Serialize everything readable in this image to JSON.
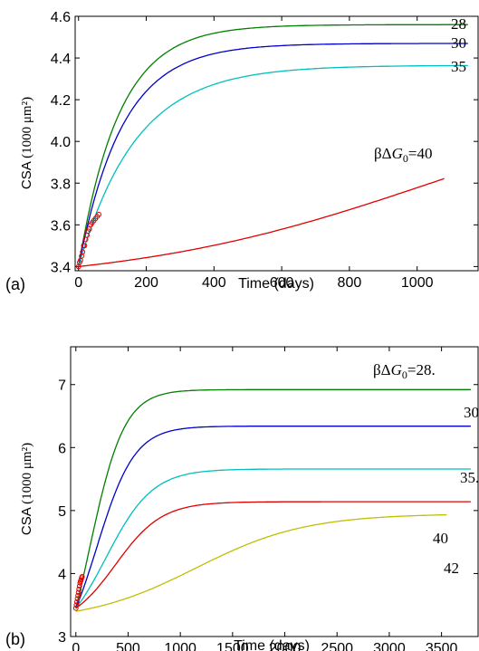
{
  "chart_data": [
    {
      "type": "line",
      "panel_label": "(a)",
      "xlabel": "Time (days)",
      "ylabel_prefix": "CSA",
      "ylabel_unit": "(1000 μm²)",
      "xlim": [
        -10,
        1180
      ],
      "ylim": [
        3.38,
        4.6
      ],
      "xticks": [
        0,
        200,
        400,
        600,
        800,
        1000
      ],
      "yticks": [
        3.4,
        3.6,
        3.8,
        4.0,
        4.2,
        4.4,
        4.6
      ],
      "ytick_labels": [
        "3.4",
        "3.6",
        "3.8",
        "4.0",
        "4.2",
        "4.4",
        "4.6"
      ],
      "series": [
        {
          "name": "28",
          "color": "#007f00",
          "y0": 3.4,
          "yinf": 4.56,
          "tau": 120,
          "xmax": 1150
        },
        {
          "name": "30",
          "color": "#0000cc",
          "y0": 3.4,
          "yinf": 4.47,
          "tau": 130,
          "xmax": 1150
        },
        {
          "name": "35",
          "color": "#00bfbf",
          "y0": 3.4,
          "yinf": 4.365,
          "tau": 170,
          "xmax": 1150
        },
        {
          "name": "βΔG₀=40",
          "color": "#e00000",
          "y0": 3.4,
          "yinf": 4.3,
          "k": 0.0022,
          "x50": 1050,
          "xmax": 1080
        }
      ],
      "curve_labels": [
        {
          "series": "28",
          "text": "28"
        },
        {
          "series": "30",
          "text": "30"
        },
        {
          "series": "35",
          "text": "35"
        },
        {
          "series": "βΔG₀=40",
          "text_pre": "βΔ",
          "text_g": "G",
          "text_sub": "0",
          "text_post": "=40"
        }
      ],
      "experimental_points": {
        "color": "#e00000",
        "x": [
          0,
          3,
          6,
          9,
          12,
          15,
          18,
          21,
          25,
          28,
          32,
          36,
          40,
          45,
          50,
          55,
          60
        ],
        "y": [
          3.4,
          3.42,
          3.43,
          3.45,
          3.47,
          3.5,
          3.5,
          3.53,
          3.55,
          3.57,
          3.58,
          3.6,
          3.61,
          3.62,
          3.63,
          3.64,
          3.65
        ]
      }
    },
    {
      "type": "line",
      "panel_label": "(b)",
      "xlabel": "Time (days)",
      "ylabel_prefix": "CSA",
      "ylabel_unit": "(1000 μm²)",
      "xlim": [
        -50,
        3850
      ],
      "ylim": [
        3.0,
        7.6
      ],
      "xticks": [
        0,
        500,
        1000,
        1500,
        2000,
        2500,
        3000,
        3500
      ],
      "yticks": [
        3,
        4,
        5,
        6,
        7
      ],
      "ytick_labels": [
        "3",
        "4",
        "5",
        "6",
        "7"
      ],
      "series": [
        {
          "name": "βΔG₀=28",
          "color": "#007f00",
          "y0": 3.45,
          "yinf": 6.92,
          "k": 0.006,
          "x50": 130,
          "xmax": 3780
        },
        {
          "name": "30",
          "color": "#0000cc",
          "y0": 3.45,
          "yinf": 6.34,
          "k": 0.0055,
          "x50": 200,
          "xmax": 3780
        },
        {
          "name": "35",
          "color": "#00bfbf",
          "y0": 3.45,
          "yinf": 5.66,
          "k": 0.0045,
          "x50": 290,
          "xmax": 3780
        },
        {
          "name": "40",
          "color": "#e00000",
          "y0": 3.45,
          "yinf": 5.14,
          "k": 0.0045,
          "x50": 380,
          "xmax": 3780
        },
        {
          "name": "42",
          "color": "#bfbf00",
          "y0": 3.4,
          "yinf": 4.95,
          "k": 0.0019,
          "x50": 1150,
          "xmax": 3550
        }
      ],
      "curve_labels": [
        {
          "series": "βΔG₀=28",
          "text_pre": "βΔ",
          "text_g": "G",
          "text_sub": "0",
          "text_post": "=28."
        },
        {
          "series": "30",
          "text": "30."
        },
        {
          "series": "35",
          "text": "35."
        },
        {
          "series": "40",
          "text": "40"
        },
        {
          "series": "42",
          "text": "42"
        }
      ],
      "experimental_points": {
        "color": "#e00000",
        "x": [
          0,
          5,
          10,
          15,
          20,
          25,
          30,
          35,
          40,
          45,
          50,
          55,
          60
        ],
        "y": [
          3.45,
          3.5,
          3.55,
          3.6,
          3.65,
          3.7,
          3.75,
          3.8,
          3.85,
          3.88,
          3.9,
          3.93,
          3.95
        ]
      }
    }
  ]
}
